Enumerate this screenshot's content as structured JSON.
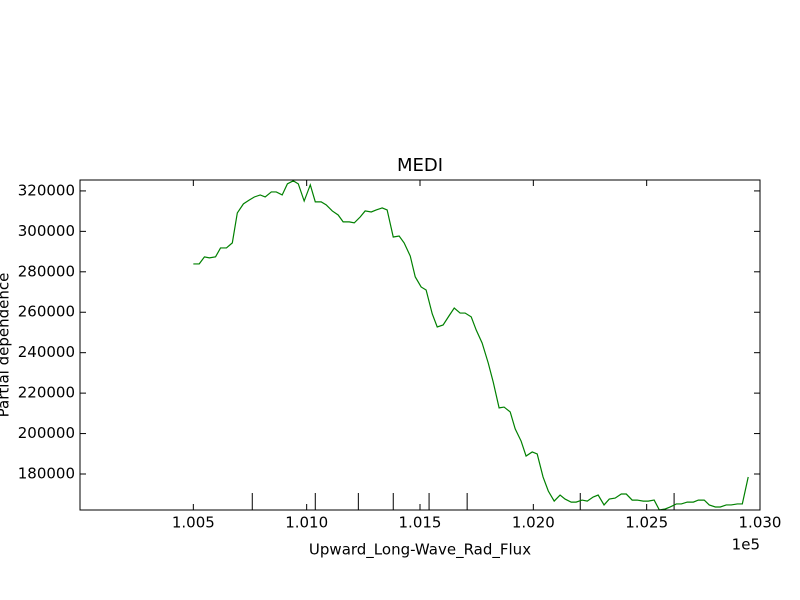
{
  "chart_data": {
    "type": "line",
    "title": "MEDI",
    "x_label": "Upward_Long-Wave_Rad_Flux",
    "y_label": "Partial dependence",
    "x_offset_label": "1e5",
    "xlim": [
      100000,
      103000
    ],
    "ylim": [
      162200,
      325400
    ],
    "xticks": [
      {
        "value": 100500,
        "label": "1.005"
      },
      {
        "value": 101000,
        "label": "1.010"
      },
      {
        "value": 101500,
        "label": "1.015"
      },
      {
        "value": 102000,
        "label": "1.020"
      },
      {
        "value": 102500,
        "label": "1.025"
      },
      {
        "value": 103000,
        "label": "1.030"
      }
    ],
    "yticks": [
      180000,
      200000,
      220000,
      240000,
      260000,
      280000,
      300000,
      320000
    ],
    "deciles": [
      100760,
      101038,
      101228,
      101382,
      101540,
      101708,
      102207,
      102621
    ],
    "series": [
      {
        "color": "#008000",
        "x": [
          100500,
          100526,
          100549,
          100571,
          100598,
          100620,
          100646,
          100672,
          100694,
          100721,
          100747,
          100769,
          100795,
          100817,
          100844,
          100866,
          100892,
          100915,
          100941,
          100963,
          100989,
          101016,
          101038,
          101064,
          101086,
          101113,
          101139,
          101161,
          101188,
          101210,
          101236,
          101258,
          101285,
          101307,
          101333,
          101355,
          101382,
          101408,
          101430,
          101457,
          101479,
          101505,
          101527,
          101554,
          101576,
          101602,
          101628,
          101651,
          101677,
          101699,
          101726,
          101748,
          101774,
          101801,
          101823,
          101849,
          101871,
          101898,
          101920,
          101946,
          101968,
          101995,
          102017,
          102043,
          102066,
          102092,
          102118,
          102140,
          102167,
          102189,
          102215,
          102238,
          102264,
          102286,
          102312,
          102335,
          102361,
          102388,
          102410,
          102436,
          102458,
          102485,
          102507,
          102533,
          102556,
          102582,
          102604,
          102631,
          102653,
          102679,
          102706,
          102728,
          102754,
          102776,
          102803,
          102825,
          102851,
          102873,
          102900,
          102922,
          102948
        ],
        "values": [
          283900,
          283900,
          287350,
          286900,
          287400,
          291800,
          291800,
          294300,
          309100,
          313600,
          315500,
          317000,
          318000,
          317000,
          319500,
          319500,
          318000,
          323500,
          325000,
          323500,
          315000,
          323000,
          314600,
          314600,
          313100,
          310100,
          308100,
          304700,
          304700,
          304200,
          307100,
          310100,
          309600,
          310600,
          311600,
          310600,
          297200,
          297700,
          294300,
          287800,
          277500,
          272500,
          271000,
          259200,
          252700,
          253700,
          258200,
          262100,
          259600,
          259600,
          257700,
          251200,
          244800,
          234900,
          225500,
          212700,
          213100,
          210700,
          202300,
          196300,
          188900,
          190900,
          189900,
          178500,
          171600,
          166600,
          169600,
          167600,
          166100,
          166100,
          167100,
          166600,
          168600,
          169600,
          164700,
          167600,
          168100,
          170100,
          170100,
          167100,
          167100,
          166600,
          166600,
          167100,
          162200,
          162700,
          163700,
          165200,
          165200,
          166100,
          166100,
          167100,
          167100,
          164700,
          163700,
          163700,
          164700,
          164700,
          165200,
          165200,
          178500
        ]
      }
    ]
  }
}
